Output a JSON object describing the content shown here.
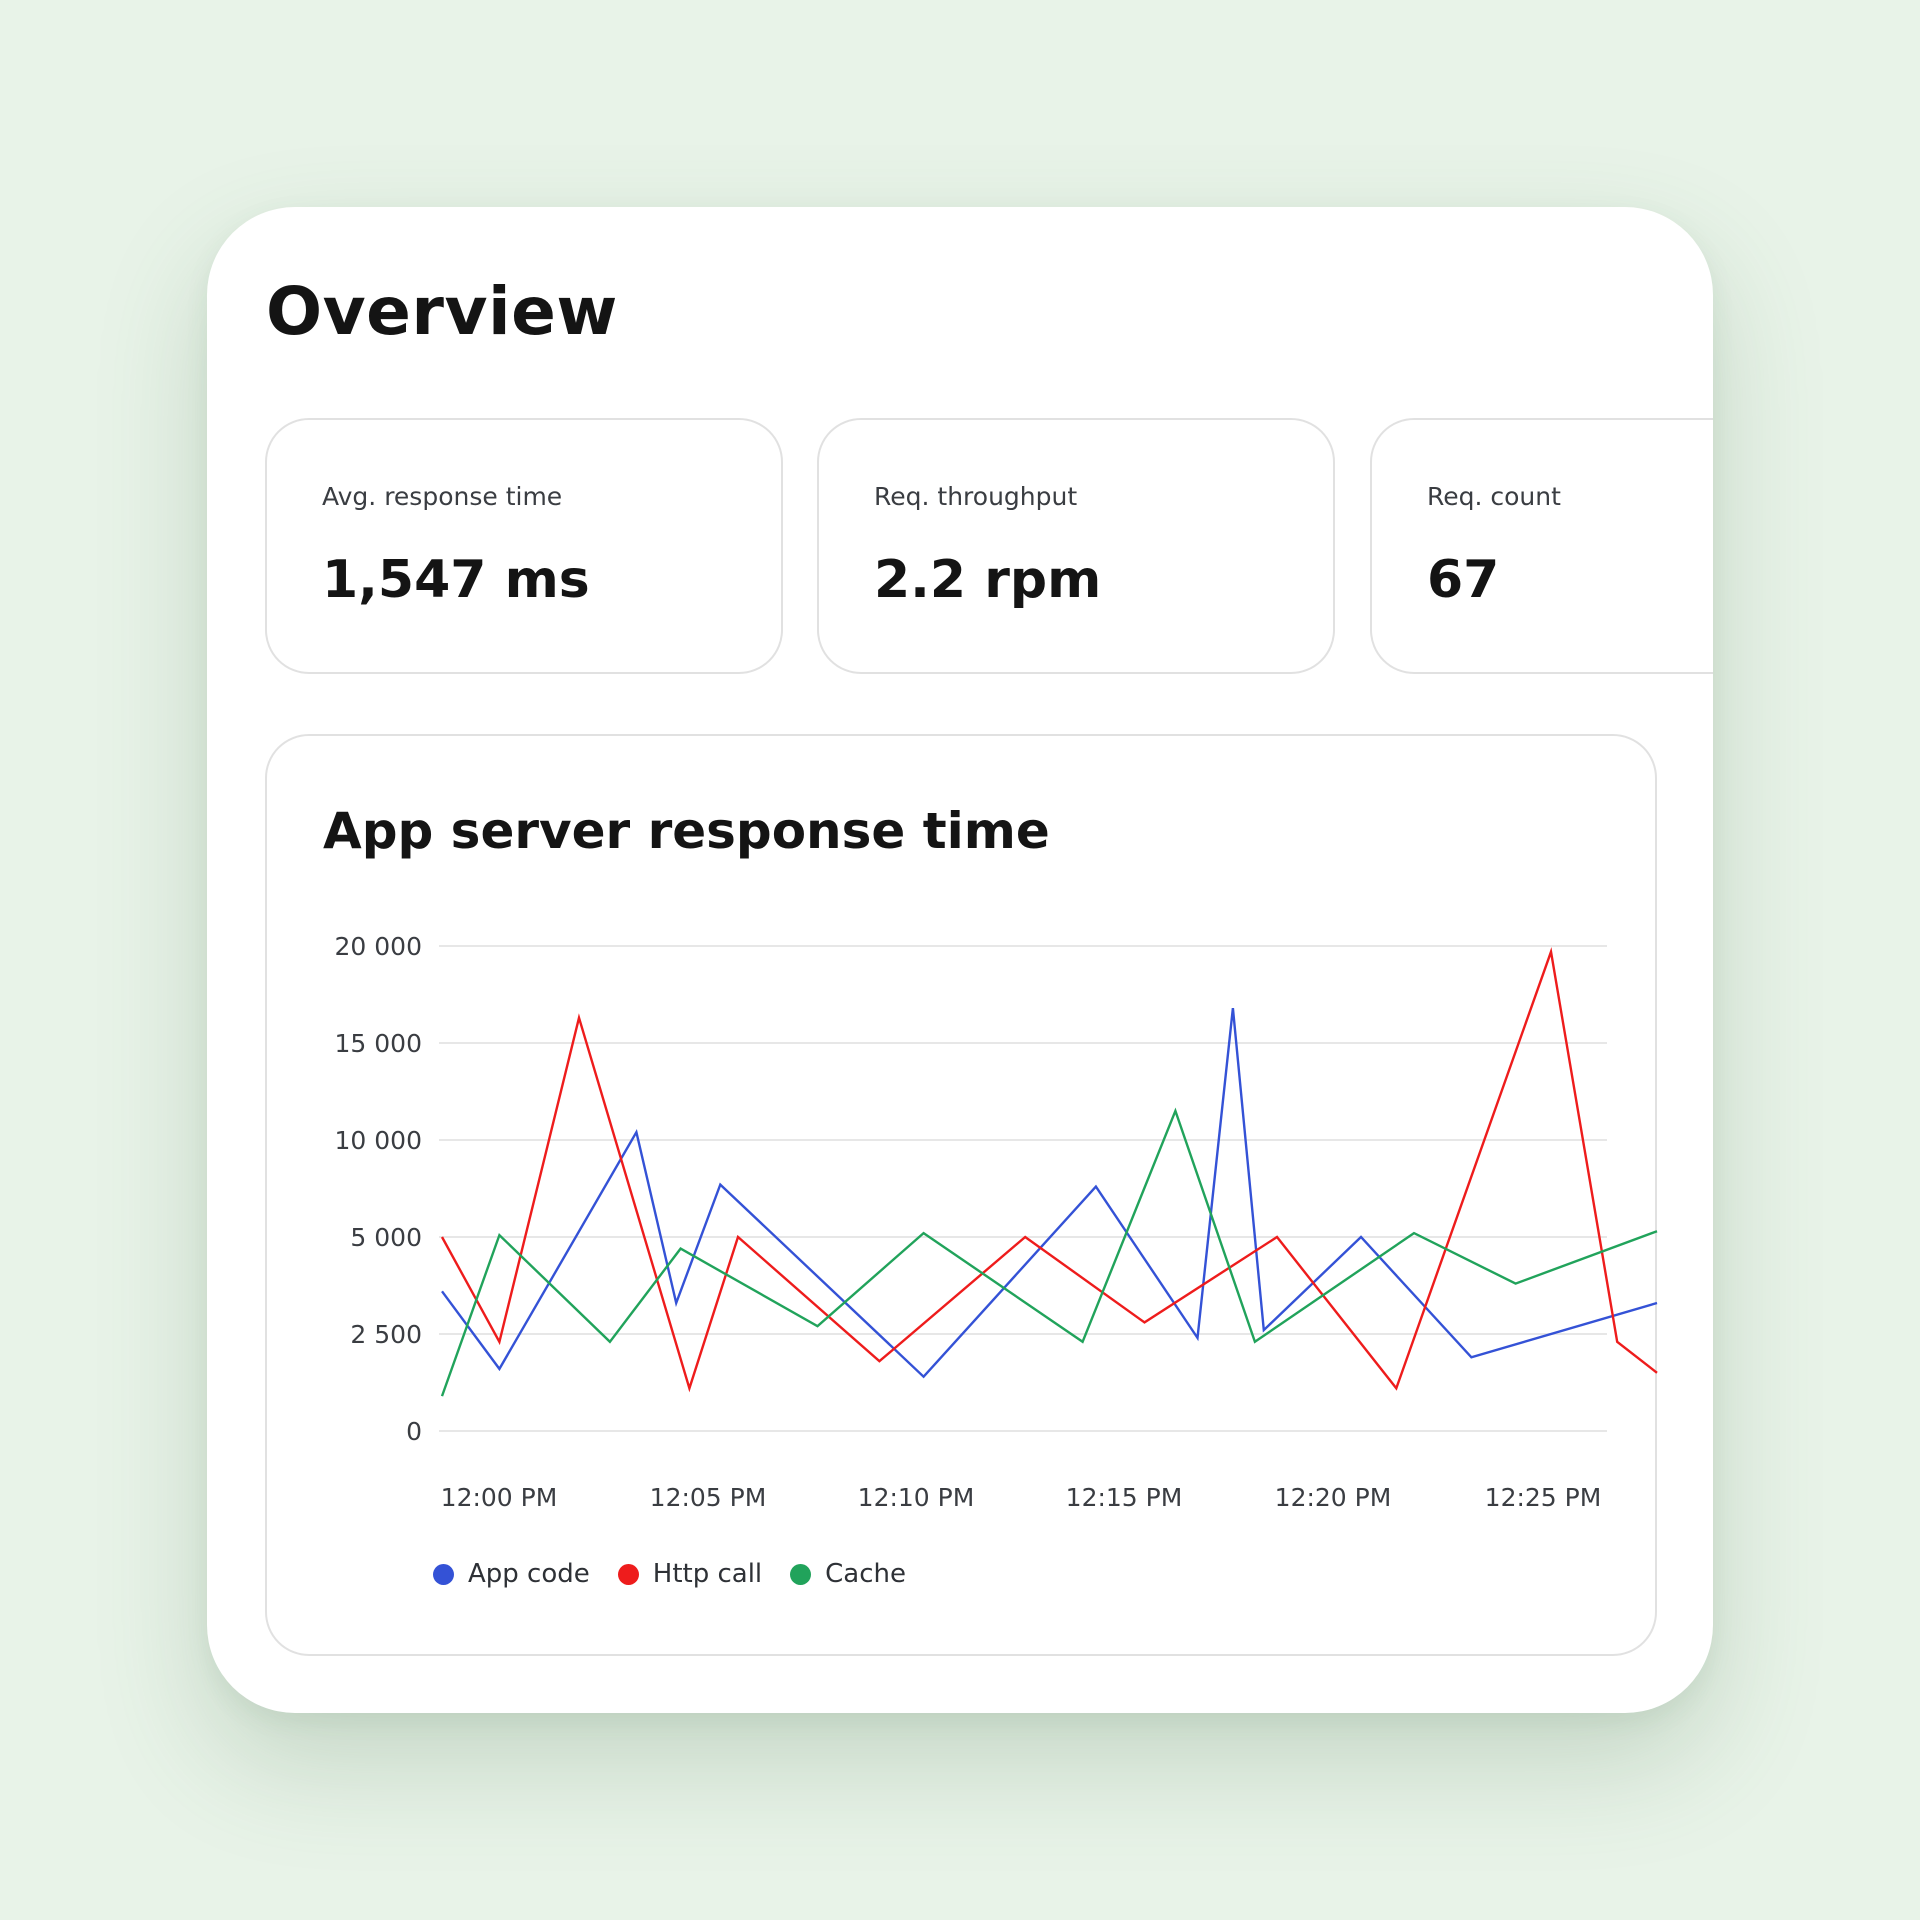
{
  "page": {
    "title": "Overview"
  },
  "stats": [
    {
      "label": "Avg. response time",
      "value": "1,547 ms"
    },
    {
      "label": "Req. throughput",
      "value": "2.2 rpm"
    },
    {
      "label": "Req. count",
      "value": "67"
    }
  ],
  "chart": {
    "title": "App server response time"
  },
  "chart_data": {
    "type": "line",
    "title": "App server response time",
    "xlabel": "",
    "ylabel": "",
    "ylim": [
      0,
      20000
    ],
    "yticks": [
      0,
      2500,
      5000,
      10000,
      15000,
      20000
    ],
    "ytick_labels": [
      "0",
      "2 500",
      "5 000",
      "10 000",
      "15 000",
      "20 000"
    ],
    "xlim": [
      0,
      27.5
    ],
    "xticks": [
      0,
      5,
      10,
      15,
      20,
      25
    ],
    "xtick_labels": [
      "12:00 PM",
      "12:05 PM",
      "12:10 PM",
      "12:15 PM",
      "12:20 PM",
      "12:25 PM"
    ],
    "grid": true,
    "legend_position": "bottom-left",
    "series": [
      {
        "name": "App code",
        "color": "#3452d6",
        "x": [
          0,
          1.3,
          4.4,
          5.3,
          6.3,
          10.9,
          14.8,
          17.1,
          17.9,
          18.6,
          20.8,
          23.3,
          27.5
        ],
        "y": [
          3600,
          1600,
          10400,
          3300,
          7700,
          1400,
          7600,
          2400,
          16800,
          2600,
          5000,
          1900,
          3300
        ]
      },
      {
        "name": "Http call",
        "color": "#ee1c1c",
        "x": [
          0,
          1.3,
          3.1,
          5.6,
          6.7,
          9.9,
          13.2,
          15.9,
          18.9,
          21.6,
          25.1,
          26.6,
          27.5
        ],
        "y": [
          5000,
          2300,
          16300,
          1100,
          5000,
          1800,
          5000,
          2800,
          5000,
          1100,
          19700,
          2300,
          1500
        ]
      },
      {
        "name": "Cache",
        "color": "#21a35b",
        "x": [
          0,
          1.3,
          3.8,
          5.4,
          8.5,
          10.9,
          14.5,
          16.6,
          18.4,
          22.0,
          24.3,
          27.5
        ],
        "y": [
          900,
          5100,
          2300,
          4700,
          2700,
          5200,
          2300,
          11500,
          2300,
          5200,
          3800,
          5300
        ]
      }
    ]
  }
}
